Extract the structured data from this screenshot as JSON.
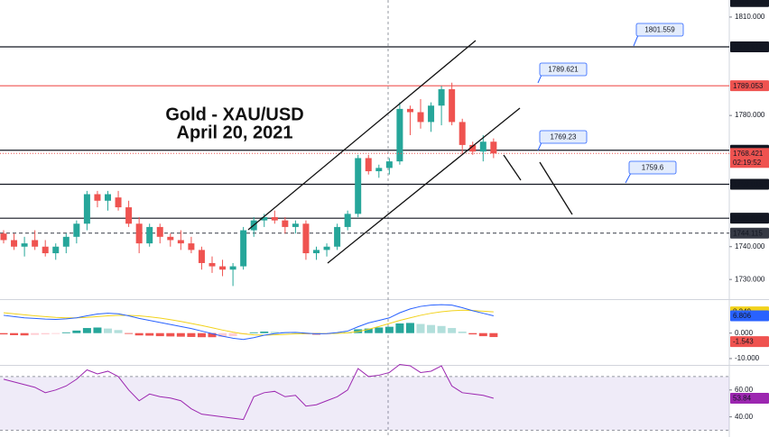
{
  "chart_data": [
    {
      "type": "candlestick",
      "title": "Gold - XAU/USD",
      "subtitle": "April 20, 2021",
      "open": [
        1744,
        1742,
        1740,
        1742,
        1740,
        1738,
        1740,
        1743,
        1747,
        1756,
        1754,
        1755,
        1752,
        1747,
        1741,
        1746,
        1743,
        1742,
        1741,
        1739,
        1735,
        1734,
        1733,
        1734,
        1745,
        1748,
        1749,
        1748,
        1746,
        1747,
        1738,
        1739,
        1740,
        1746,
        1750,
        1767,
        1763,
        1764,
        1766,
        1782,
        1781,
        1778,
        1783,
        1788,
        1778,
        1771,
        1769,
        1772
      ],
      "high": [
        1745,
        1744,
        1743,
        1745,
        1742,
        1741,
        1744,
        1748,
        1757,
        1757,
        1757,
        1757,
        1754,
        1749,
        1747,
        1747,
        1744,
        1745,
        1743,
        1740,
        1737,
        1736,
        1735,
        1746,
        1749,
        1750,
        1751,
        1749,
        1748,
        1748,
        1740,
        1741,
        1747,
        1751,
        1768,
        1768,
        1765,
        1767,
        1784,
        1783,
        1785,
        1784,
        1789,
        1790,
        1779,
        1772,
        1774,
        1773
      ],
      "low": [
        1741,
        1739,
        1737,
        1739,
        1737,
        1736,
        1738,
        1741,
        1745,
        1752,
        1751,
        1751,
        1746,
        1738,
        1740,
        1741,
        1740,
        1739,
        1738,
        1733,
        1732,
        1731,
        1728,
        1733,
        1743,
        1746,
        1747,
        1744,
        1744,
        1736,
        1736,
        1737,
        1739,
        1745,
        1749,
        1762,
        1761,
        1762,
        1765,
        1774,
        1776,
        1775,
        1777,
        1777,
        1768,
        1768,
        1766,
        1767
      ],
      "close": [
        1742,
        1740,
        1741,
        1740,
        1738,
        1740,
        1743,
        1747,
        1756,
        1754,
        1756,
        1752,
        1747,
        1741,
        1746,
        1743,
        1742,
        1741,
        1739,
        1735,
        1734,
        1733,
        1734,
        1745,
        1748,
        1749,
        1748,
        1746,
        1747,
        1738,
        1739,
        1740,
        1746,
        1750,
        1767,
        1763,
        1764,
        1766,
        1782,
        1781,
        1778,
        1783,
        1788,
        1778,
        1771,
        1769,
        1772,
        1768.421
      ],
      "up_color": "#26a69a",
      "down_color": "#ef5350",
      "countdown": "02:19:52",
      "ylim": [
        1724,
        1815.2
      ],
      "yticks": [
        {
          "value": 1810,
          "label": "1810.000"
        },
        {
          "value": 1780,
          "label": "1780.000"
        },
        {
          "value": 1740,
          "label": "1740.000"
        },
        {
          "value": 1730,
          "label": "1730.000"
        }
      ],
      "levels": [
        {
          "value": 1814.732,
          "color": "#131722",
          "style": "none"
        },
        {
          "value": 1800.915,
          "color": "#131722",
          "style": "solid"
        },
        {
          "value": 1789.053,
          "color": "#ef5350",
          "style": "solid"
        },
        {
          "value": 1769.403,
          "color": "#131722",
          "style": "solid"
        },
        {
          "value": 1759.015,
          "color": "#131722",
          "style": "solid"
        },
        {
          "value": 1748.672,
          "color": "#131722",
          "style": "solid"
        },
        {
          "value": 1744.115,
          "color": "#363a45",
          "style": "dashed"
        }
      ],
      "callouts": [
        1801.559,
        1789.621,
        1769.23,
        1759.6
      ]
    },
    {
      "type": "macd",
      "histogram": [
        -0.5,
        -0.8,
        -0.9,
        -0.7,
        -0.5,
        -0.3,
        0.3,
        1.0,
        2.0,
        2.2,
        1.8,
        1.2,
        -0.3,
        -0.9,
        -1.0,
        -1.2,
        -1.3,
        -1.4,
        -1.5,
        -1.6,
        -1.6,
        -1.5,
        -1.2,
        -0.4,
        0.3,
        0.6,
        0.5,
        0.4,
        0.2,
        -0.4,
        -0.6,
        -0.5,
        -0.2,
        0.3,
        1.5,
        1.8,
        2.2,
        2.5,
        3.8,
        4.0,
        3.6,
        3.2,
        2.8,
        2.0,
        0.6,
        -0.5,
        -1.2,
        -1.543
      ],
      "hist_colors": {
        "up_rising": "#26a69a",
        "up_falling": "#b2dfdb",
        "down_falling": "#ef5350",
        "down_rising": "#ffcdd2"
      },
      "series": [
        {
          "color": "#f2d21b",
          "values": [
            8,
            7.6,
            7.2,
            6.8,
            6.5,
            6.2,
            6,
            6,
            6.2,
            6.5,
            6.8,
            7,
            7,
            6.8,
            6.4,
            5.9,
            5.3,
            4.6,
            3.8,
            3,
            2.1,
            1.2,
            0.4,
            -0.3,
            -0.7,
            -0.8,
            -0.7,
            -0.5,
            -0.3,
            -0.2,
            -0.2,
            -0.2,
            -0.1,
            0.1,
            0.6,
            1.5,
            2.6,
            3.8,
            5,
            6,
            7,
            7.8,
            8.4,
            8.8,
            9,
            8.9,
            8.6,
            8.349
          ]
        },
        {
          "color": "#2962ff",
          "values": [
            7,
            6.5,
            6,
            5.8,
            5.5,
            5.4,
            5.6,
            6,
            6.8,
            7.5,
            7.8,
            7.6,
            6.8,
            5.8,
            5,
            4.2,
            3.4,
            2.6,
            1.8,
            0.8,
            -0.2,
            -1.2,
            -2,
            -2.5,
            -1.8,
            -0.8,
            -0.2,
            0.2,
            0.3,
            0,
            -0.3,
            -0.2,
            0.2,
            0.8,
            2.5,
            4,
            5,
            6,
            8,
            9.5,
            10.5,
            11,
            11.2,
            11,
            10,
            8.8,
            7.8,
            6.806
          ]
        }
      ],
      "ylim": [
        -12.5,
        13
      ],
      "yticks": [
        {
          "value": 0,
          "label": "0.000"
        },
        {
          "value": -10,
          "label": "-10.000"
        }
      ]
    },
    {
      "type": "line",
      "color": "#9c27b0",
      "band": [
        30,
        70
      ],
      "band_color": "#7e57c2",
      "values": [
        68,
        66,
        64,
        62,
        58,
        60,
        63,
        68,
        75,
        72,
        74,
        70,
        60,
        52,
        57,
        55,
        54,
        52,
        46,
        42,
        41,
        40,
        39,
        38,
        55,
        58,
        59,
        55,
        56,
        48,
        49,
        52,
        55,
        60,
        76,
        70,
        71,
        73,
        79,
        78,
        73,
        74,
        78,
        63,
        58,
        57,
        56,
        53.84
      ],
      "ylim": [
        25,
        78
      ],
      "yticks": [
        {
          "value": 60,
          "label": "60.00"
        },
        {
          "value": 40,
          "label": "40.00"
        }
      ]
    }
  ]
}
